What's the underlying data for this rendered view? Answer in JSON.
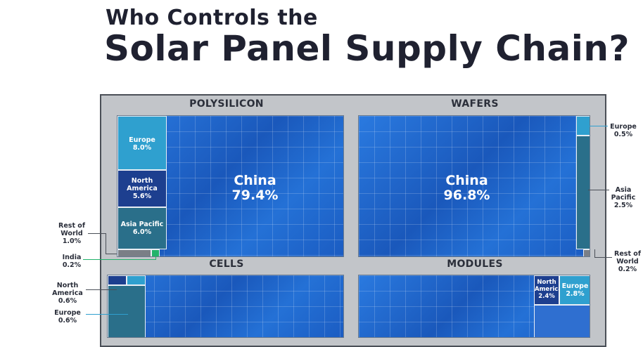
{
  "header": {
    "line1": "Who Controls the",
    "line2": "Solar Panel Supply Chain?"
  },
  "colors": {
    "china": "#1f63c9",
    "europe": "#2fa0cf",
    "north_america": "#1d3f8f",
    "asia_pacific": "#2a6f8a",
    "rest_of_world": "#7a7f86",
    "india": "#22b36b",
    "frame": "#c2c5c9"
  },
  "panels": {
    "polysilicon": {
      "title": "POLYSILICON",
      "china": {
        "name": "China",
        "value": "79.4%"
      },
      "europe": {
        "name": "Europe",
        "value": "8.0%"
      },
      "north_america": {
        "name1": "North",
        "name2": "America",
        "value": "5.6%"
      },
      "asia_pacific": {
        "name": "Asia Pacific",
        "value": "6.0%"
      },
      "rest_of_world": {
        "name1": "Rest of",
        "name2": "World",
        "value": "1.0%"
      },
      "india": {
        "name": "India",
        "value": "0.2%"
      }
    },
    "wafers": {
      "title": "WAFERS",
      "china": {
        "name": "China",
        "value": "96.8%"
      },
      "europe": {
        "name": "Europe",
        "value": "0.5%"
      },
      "asia_pacific": {
        "name1": "Asia",
        "name2": "Pacific",
        "value": "2.5%"
      },
      "rest_of_world": {
        "name1": "Rest of",
        "name2": "World",
        "value": "0.2%"
      }
    },
    "cells": {
      "title": "CELLS",
      "north_america": {
        "name1": "North",
        "name2": "America",
        "value": "0.6%"
      },
      "europe": {
        "name": "Europe",
        "value": "0.6%"
      }
    },
    "modules": {
      "title": "MODULES",
      "north_america": {
        "name1": "North",
        "name2": "America",
        "value": "2.4%"
      },
      "europe": {
        "name": "Europe",
        "value": "2.8%"
      }
    }
  },
  "chart_data": {
    "type": "treemap",
    "title": "Who Controls the Solar Panel Supply Chain?",
    "panels": [
      {
        "name": "POLYSILICON",
        "segments": [
          {
            "region": "China",
            "share": 79.4
          },
          {
            "region": "Europe",
            "share": 8.0
          },
          {
            "region": "North America",
            "share": 5.6
          },
          {
            "region": "Asia Pacific",
            "share": 6.0
          },
          {
            "region": "Rest of World",
            "share": 1.0
          },
          {
            "region": "India",
            "share": 0.2
          }
        ]
      },
      {
        "name": "WAFERS",
        "segments": [
          {
            "region": "China",
            "share": 96.8
          },
          {
            "region": "Europe",
            "share": 0.5
          },
          {
            "region": "Asia Pacific",
            "share": 2.5
          },
          {
            "region": "Rest of World",
            "share": 0.2
          }
        ]
      },
      {
        "name": "CELLS",
        "segments": [
          {
            "region": "North America",
            "share": 0.6
          },
          {
            "region": "Europe",
            "share": 0.6
          }
        ]
      },
      {
        "name": "MODULES",
        "segments": [
          {
            "region": "North America",
            "share": 2.4
          },
          {
            "region": "Europe",
            "share": 2.8
          }
        ]
      }
    ]
  }
}
